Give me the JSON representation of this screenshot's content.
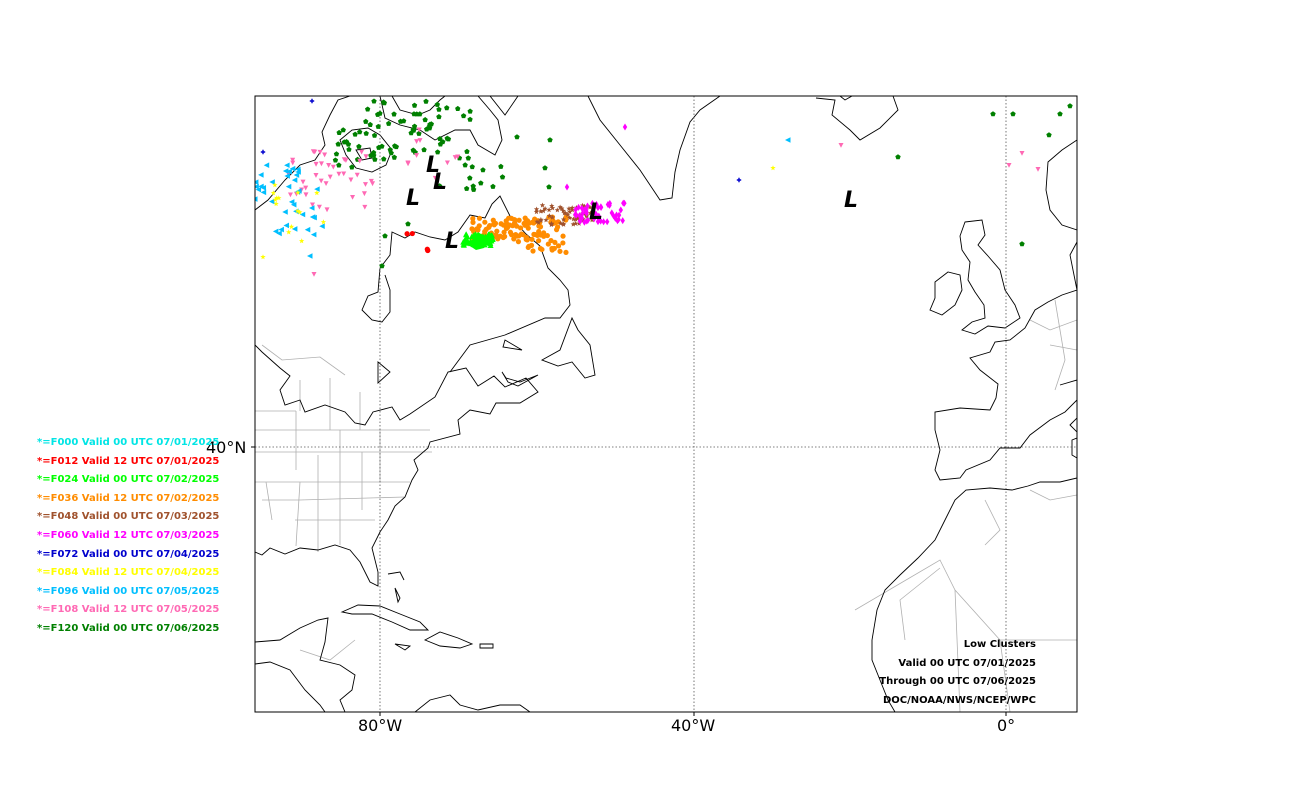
{
  "map": {
    "axes": {
      "x_ticks": [
        {
          "lon": -80,
          "label": "80°W"
        },
        {
          "lon": -40,
          "label": "40°W"
        },
        {
          "lon": 0,
          "label": "0°"
        }
      ],
      "y_ticks": [
        {
          "lat": 40,
          "label": "40°N"
        }
      ]
    },
    "legend": [
      {
        "label": "*=F000 Valid 00 UTC 07/01/2025",
        "color": "#00e5e5"
      },
      {
        "label": "*=F012 Valid 12 UTC 07/01/2025",
        "color": "#ff0000"
      },
      {
        "label": "*=F024 Valid 00 UTC 07/02/2025",
        "color": "#00ff00"
      },
      {
        "label": "*=F036 Valid 12 UTC 07/02/2025",
        "color": "#ff8c00"
      },
      {
        "label": "*=F048 Valid 00 UTC 07/03/2025",
        "color": "#a0522d"
      },
      {
        "label": "*=F060 Valid 12 UTC 07/03/2025",
        "color": "#ff00ff"
      },
      {
        "label": "*=F072 Valid 00 UTC 07/04/2025",
        "color": "#0000cd"
      },
      {
        "label": "*=F084 Valid 12 UTC 07/04/2025",
        "color": "#ffff00"
      },
      {
        "label": "*=F096 Valid 00 UTC 07/05/2025",
        "color": "#00bfff"
      },
      {
        "label": "*=F108 Valid 12 UTC 07/05/2025",
        "color": "#ff69b4"
      },
      {
        "label": "*=F120 Valid 00 UTC 07/06/2025",
        "color": "#008000"
      }
    ],
    "credits": [
      "Low Clusters",
      "Valid 00 UTC 07/01/2025",
      "Through 00 UTC 07/06/2025",
      "DOC/NOAA/NWS/NCEP/WPC"
    ],
    "low_label": "L"
  }
}
